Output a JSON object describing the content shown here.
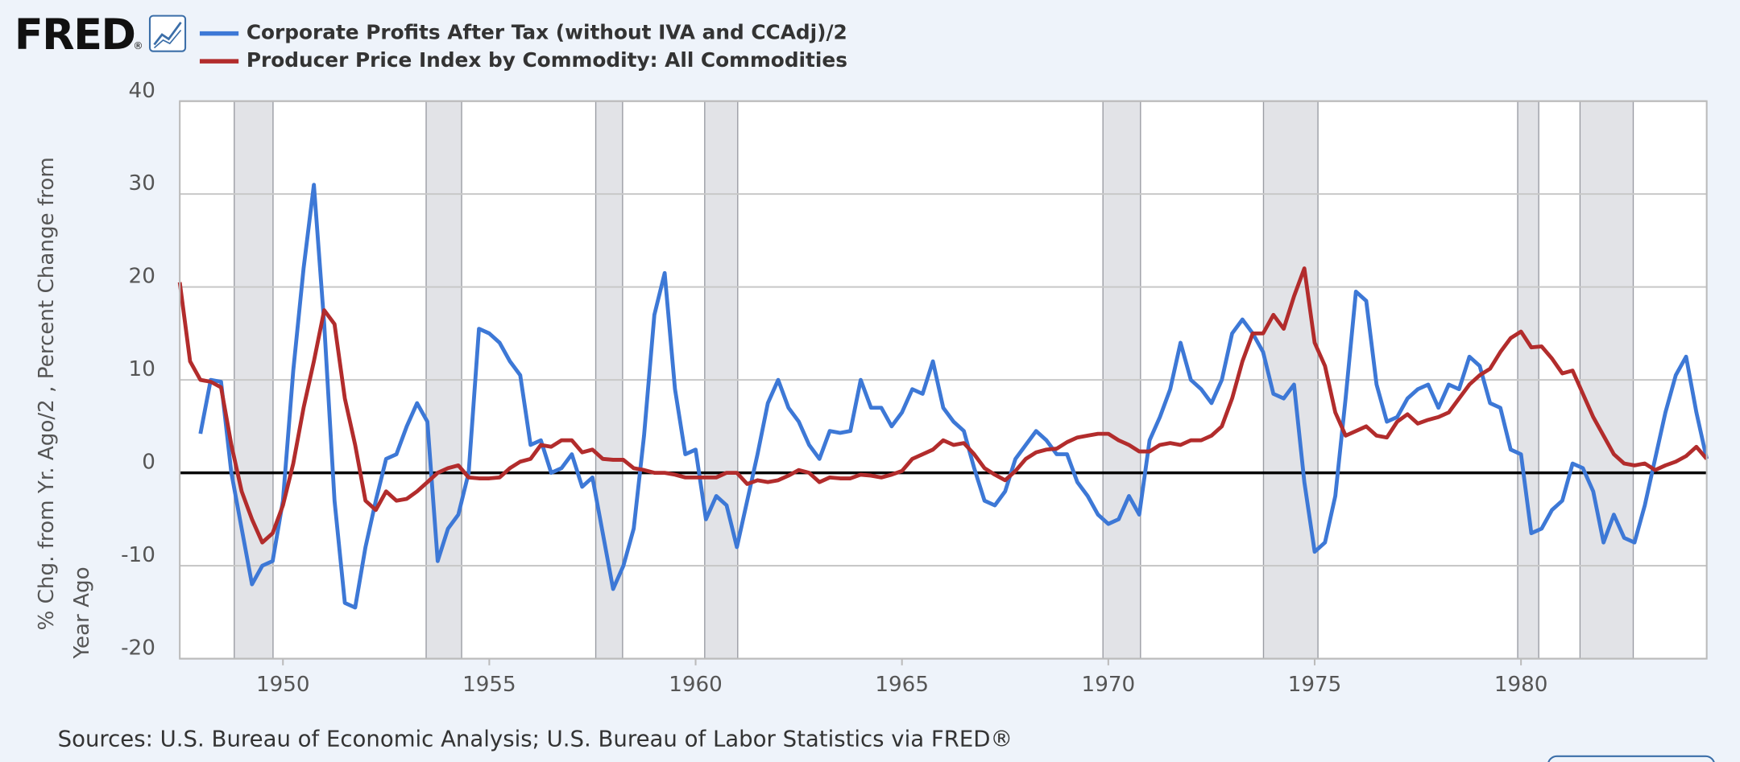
{
  "logo": "FRED",
  "logo_mark": "®",
  "chart_data": {
    "type": "line",
    "ylabel": [
      "% Chg. from Yr. Ago/2 , Percent Change from",
      "Year Ago"
    ],
    "source": "Sources: U.S. Bureau of Economic Analysis; U.S. Bureau of Labor Statistics via FRED®",
    "xlim": [
      1947.5,
      1984.5
    ],
    "xticks": [
      1950,
      1955,
      1960,
      1965,
      1970,
      1975,
      1980
    ],
    "ylim": [
      -20,
      40
    ],
    "yticks": [
      -20,
      -10,
      0,
      10,
      20,
      30,
      40
    ],
    "grid": true,
    "legend": "top",
    "recessions": [
      [
        1948.82,
        1949.76
      ],
      [
        1953.47,
        1954.33
      ],
      [
        1957.58,
        1958.23
      ],
      [
        1960.22,
        1961.02
      ],
      [
        1969.87,
        1970.78
      ],
      [
        1973.76,
        1975.08
      ],
      [
        1979.92,
        1980.43
      ],
      [
        1981.43,
        1982.72
      ]
    ],
    "x": [
      1947.5,
      1947.75,
      1948,
      1948.25,
      1948.5,
      1948.75,
      1949,
      1949.25,
      1949.5,
      1949.75,
      1950,
      1950.25,
      1950.5,
      1950.75,
      1951,
      1951.25,
      1951.5,
      1951.75,
      1952,
      1952.25,
      1952.5,
      1952.75,
      1953,
      1953.25,
      1953.5,
      1953.75,
      1954,
      1954.25,
      1954.5,
      1954.75,
      1955,
      1955.25,
      1955.5,
      1955.75,
      1956,
      1956.25,
      1956.5,
      1956.75,
      1957,
      1957.25,
      1957.5,
      1957.75,
      1958,
      1958.25,
      1958.5,
      1958.75,
      1959,
      1959.25,
      1959.5,
      1959.75,
      1960,
      1960.25,
      1960.5,
      1960.75,
      1961,
      1961.25,
      1961.5,
      1961.75,
      1962,
      1962.25,
      1962.5,
      1962.75,
      1963,
      1963.25,
      1963.5,
      1963.75,
      1964,
      1964.25,
      1964.5,
      1964.75,
      1965,
      1965.25,
      1965.5,
      1965.75,
      1966,
      1966.25,
      1966.5,
      1966.75,
      1967,
      1967.25,
      1967.5,
      1967.75,
      1968,
      1968.25,
      1968.5,
      1968.75,
      1969,
      1969.25,
      1969.5,
      1969.75,
      1970,
      1970.25,
      1970.5,
      1970.75,
      1971,
      1971.25,
      1971.5,
      1971.75,
      1972,
      1972.25,
      1972.5,
      1972.75,
      1973,
      1973.25,
      1973.5,
      1973.75,
      1974,
      1974.25,
      1974.5,
      1974.75,
      1975,
      1975.25,
      1975.5,
      1975.75,
      1976,
      1976.25,
      1976.5,
      1976.75,
      1977,
      1977.25,
      1977.5,
      1977.75,
      1978,
      1978.25,
      1978.5,
      1978.75,
      1979,
      1979.25,
      1979.5,
      1979.75,
      1980,
      1980.25,
      1980.5,
      1980.75,
      1981,
      1981.25,
      1981.5,
      1981.75,
      1982,
      1982.25,
      1982.5,
      1982.75,
      1983,
      1983.25,
      1983.5,
      1983.75,
      1984,
      1984.25,
      1984.5
    ],
    "series": [
      {
        "name": "Corporate Profits After Tax (without IVA and CCAdj)/2",
        "color": "#3d78d6",
        "values": [
          null,
          null,
          4.2,
          10,
          9.8,
          0,
          -6,
          -12,
          -10,
          -9.5,
          -3,
          11,
          22,
          31,
          16,
          -3,
          -14,
          -14.5,
          -8,
          -3,
          1.5,
          2,
          5,
          7.5,
          5.5,
          -9.5,
          -6,
          -4.5,
          0,
          15.5,
          15,
          14,
          12,
          10.5,
          3,
          3.5,
          0,
          0.5,
          2,
          -1.5,
          -0.5,
          -6.5,
          -12.5,
          -10,
          -6,
          4,
          17,
          21.5,
          9,
          2,
          2.5,
          -5,
          -2.5,
          -3.5,
          -8,
          -3,
          2,
          7.5,
          10,
          7,
          5.5,
          3,
          1.5,
          4.5,
          4.3,
          4.5,
          10,
          7,
          7,
          5,
          6.5,
          9,
          8.5,
          12,
          7,
          5.5,
          4.5,
          0.5,
          -3,
          -3.5,
          -2,
          1.5,
          3,
          4.5,
          3.5,
          2,
          2,
          -1,
          -2.5,
          -4.5,
          -5.5,
          -5,
          -2.5,
          -4.5,
          3.5,
          6,
          9,
          14,
          10,
          9,
          7.5,
          10,
          15,
          16.5,
          15,
          13,
          8.5,
          8,
          9.5,
          -1,
          -8.5,
          -7.5,
          -2.5,
          8,
          19.5,
          18.5,
          9.5,
          5.5,
          6,
          8,
          9,
          9.5,
          7,
          9.5,
          9,
          12.5,
          11.5,
          7.5,
          7,
          2.5,
          2,
          -6.5,
          -6,
          -4,
          -3,
          1,
          0.5,
          -2,
          -7.5,
          -4.5,
          -7,
          -7.5,
          -3.5,
          1.5,
          6.5,
          10.5,
          12.5,
          6.5,
          1.5
        ]
      },
      {
        "name": "Producer Price Index by Commodity: All Commodities",
        "color": "#b22c2c",
        "values": [
          20.5,
          12,
          10,
          9.8,
          9.2,
          3,
          -2,
          -5,
          -7.5,
          -6.5,
          -3.5,
          1,
          7,
          12,
          17.5,
          16,
          8,
          3,
          -3,
          -4,
          -2,
          -3,
          -2.8,
          -2,
          -1,
          0,
          0.5,
          0.8,
          -0.5,
          -0.6,
          -0.6,
          -0.5,
          0.5,
          1.2,
          1.5,
          3,
          2.8,
          3.5,
          3.5,
          2.2,
          2.5,
          1.5,
          1.4,
          1.4,
          0.5,
          0.3,
          0,
          0,
          -0.2,
          -0.5,
          -0.5,
          -0.5,
          -0.5,
          0,
          0,
          -1.2,
          -0.8,
          -1,
          -0.8,
          -0.3,
          0.3,
          0,
          -1,
          -0.5,
          -0.6,
          -0.6,
          -0.2,
          -0.3,
          -0.5,
          -0.2,
          0.2,
          1.5,
          2,
          2.5,
          3.5,
          3,
          3.2,
          2,
          0.5,
          -0.2,
          -0.8,
          0.2,
          1.5,
          2.2,
          2.5,
          2.6,
          3.3,
          3.8,
          4,
          4.2,
          4.2,
          3.5,
          3,
          2.3,
          2.3,
          3,
          3.2,
          3,
          3.5,
          3.5,
          4,
          5,
          8,
          12,
          15,
          15,
          17,
          15.5,
          19,
          22,
          14,
          11.5,
          6.5,
          4,
          4.5,
          5,
          4,
          3.8,
          5.5,
          6.3,
          5.3,
          5.7,
          6,
          6.5,
          8,
          9.5,
          10.5,
          11.2,
          13,
          14.5,
          15.2,
          13.5,
          13.6,
          12.3,
          10.7,
          11,
          8.5,
          6,
          4,
          2,
          1,
          0.8,
          1,
          0.3,
          0.8,
          1.2,
          1.8,
          2.8,
          1.5
        ]
      }
    ]
  }
}
